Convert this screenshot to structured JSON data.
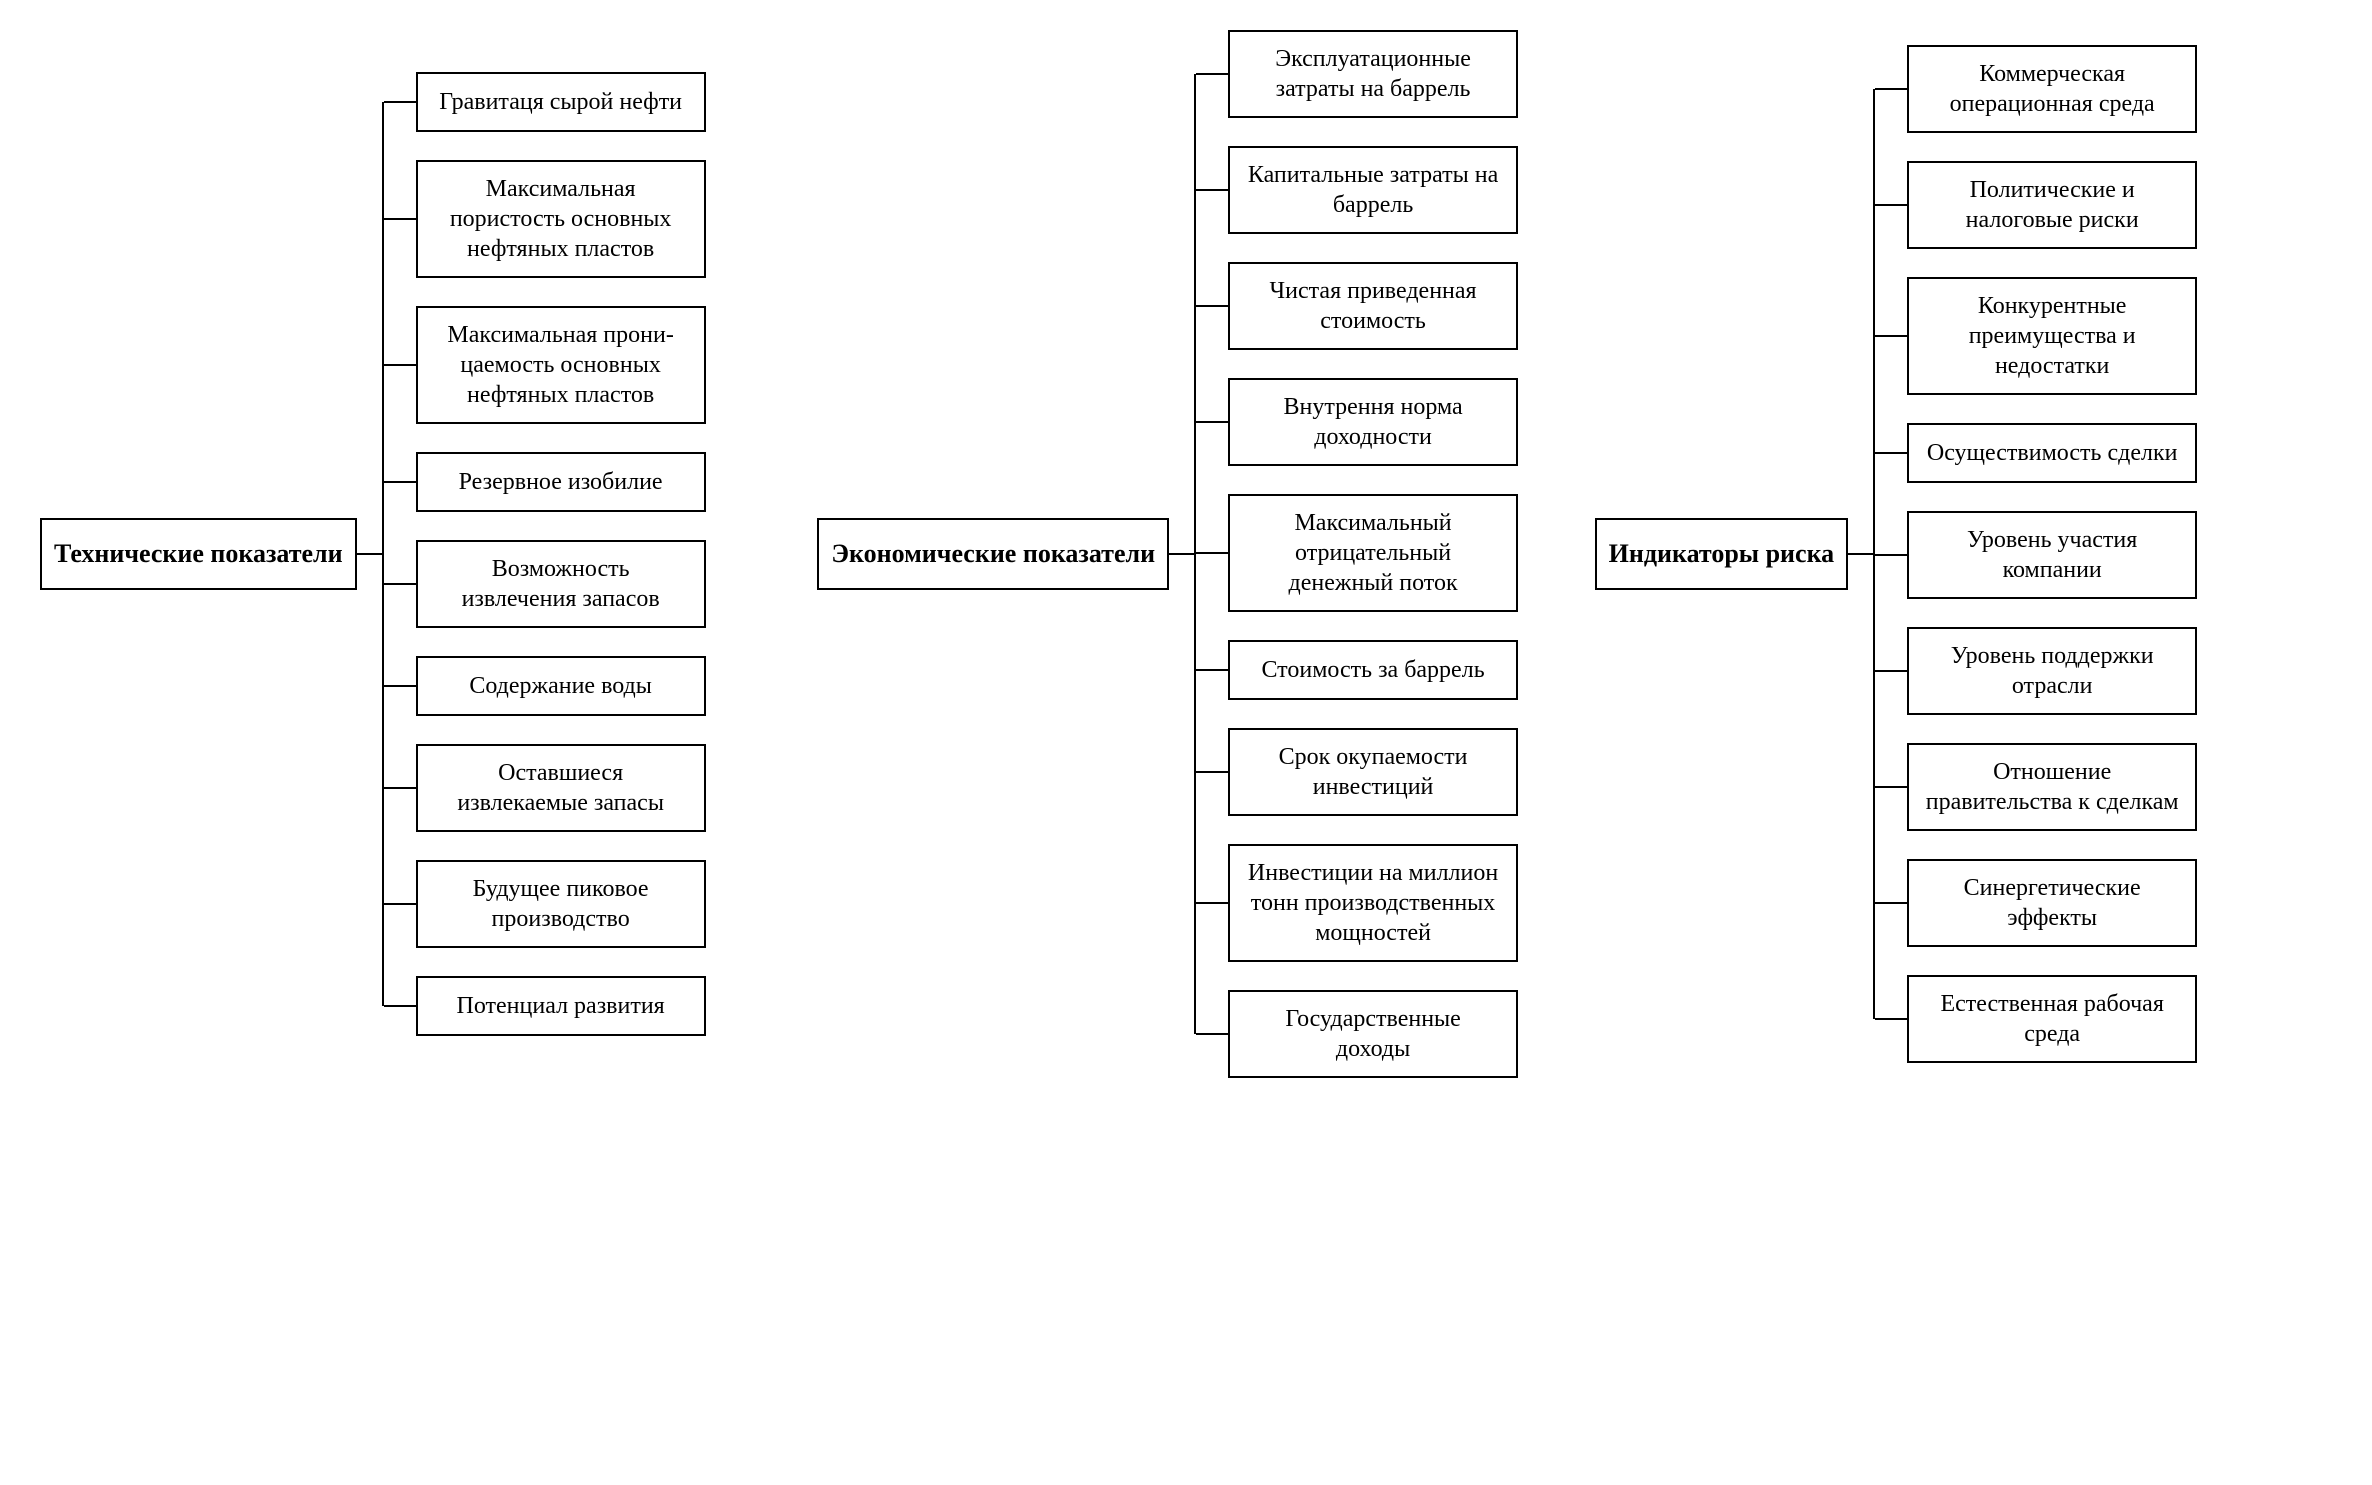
{
  "type": "tree",
  "background_color": "#ffffff",
  "border_color": "#000000",
  "border_width": 2,
  "font_family": "Times New Roman",
  "root_fontsize": 26,
  "root_fontweight": "bold",
  "child_fontsize": 24,
  "child_box_width": 290,
  "child_gap": 28,
  "connector_h_root": 25,
  "connector_h_child": 32,
  "layout": "three-columns-horizontal",
  "groups": [
    {
      "root": "Технические показатели",
      "children": [
        "Гравитаця сырой нефти",
        "Максимальная пористость основных нефтяных пластов",
        "Максимальная прони­цаемость основных нефтяных пластов",
        "Резервное изобилие",
        "Возможность извлечения запасов",
        "Содержание воды",
        "Оставшиеся извлекаемые запасы",
        "Будущее пиковое производство",
        "Потенциал развития"
      ]
    },
    {
      "root": "Экономические показатели",
      "children": [
        "Эксплуатационные затраты на баррель",
        "Капитальные затраты на баррель",
        "Чистая приведенная стоимость",
        "Внутрення норма доходности",
        "Максимальный отрицательный денежный поток",
        "Стоимость за баррель",
        "Срок окупаемости инвестиций",
        "Инвестиции на миллион тонн производственных мощностей",
        "Государственные доходы"
      ]
    },
    {
      "root": "Индикаторы риска",
      "children": [
        "Коммерческая операционная среда",
        "Политические и налоговые риски",
        "Конкурентные преимущества и недостатки",
        "Осуществимость сделки",
        "Уровень участия компании",
        "Уровень поддержки отрасли",
        "Отношение правительства к сделкам",
        "Синергетические эффекты",
        "Естественная рабочая среда"
      ]
    }
  ]
}
